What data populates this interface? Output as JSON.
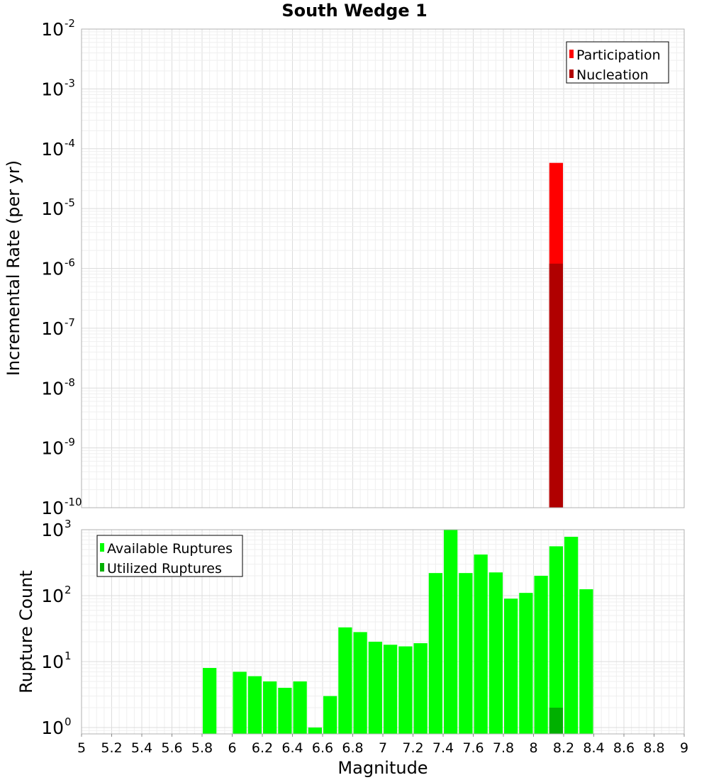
{
  "title": "South Wedge 1",
  "chart_data": [
    {
      "type": "bar",
      "name": "incremental-rate",
      "ylabel": "Incremental Rate (per yr)",
      "yscale": "log",
      "ylim": [
        1e-10,
        0.01
      ],
      "ytick_exponents": [
        -10,
        -9,
        -8,
        -7,
        -6,
        -5,
        -4,
        -3,
        -2
      ],
      "legend_position": "top-right",
      "series": [
        {
          "name": "Participation",
          "color": "#ff0000",
          "x": [
            8.15
          ],
          "values": [
            5.8e-05
          ]
        },
        {
          "name": "Nucleation",
          "color": "#b00000",
          "x": [
            8.15
          ],
          "values": [
            1.2e-06
          ]
        }
      ]
    },
    {
      "type": "bar",
      "name": "rupture-count",
      "ylabel": "Rupture Count",
      "xlabel": "Magnitude",
      "yscale": "log",
      "ylim": [
        0.8,
        1000
      ],
      "ytick_exponents": [
        0,
        1,
        2,
        3
      ],
      "xlim": [
        5,
        9
      ],
      "xticks": [
        "5",
        "5.2",
        "5.4",
        "5.6",
        "5.8",
        "6",
        "6.2",
        "6.4",
        "6.6",
        "6.8",
        "7",
        "7.2",
        "7.4",
        "7.6",
        "7.8",
        "8",
        "8.2",
        "8.4",
        "8.6",
        "8.8",
        "9"
      ],
      "legend_position": "top-left",
      "series": [
        {
          "name": "Available Ruptures",
          "color": "#00ff00",
          "x": [
            5.85,
            6.05,
            6.15,
            6.25,
            6.35,
            6.45,
            6.55,
            6.65,
            6.75,
            6.85,
            6.95,
            7.05,
            7.15,
            7.25,
            7.35,
            7.45,
            7.55,
            7.65,
            7.75,
            7.85,
            7.95,
            8.05,
            8.15,
            8.25,
            8.35
          ],
          "values": [
            8,
            7,
            6,
            5,
            4,
            5,
            1,
            3,
            33,
            28,
            20,
            18,
            17,
            19,
            220,
            1000,
            220,
            420,
            225,
            90,
            110,
            200,
            560,
            780,
            125
          ]
        },
        {
          "name": "Utilized Ruptures",
          "color": "#00b000",
          "x": [
            8.15
          ],
          "values": [
            2
          ]
        }
      ]
    }
  ]
}
